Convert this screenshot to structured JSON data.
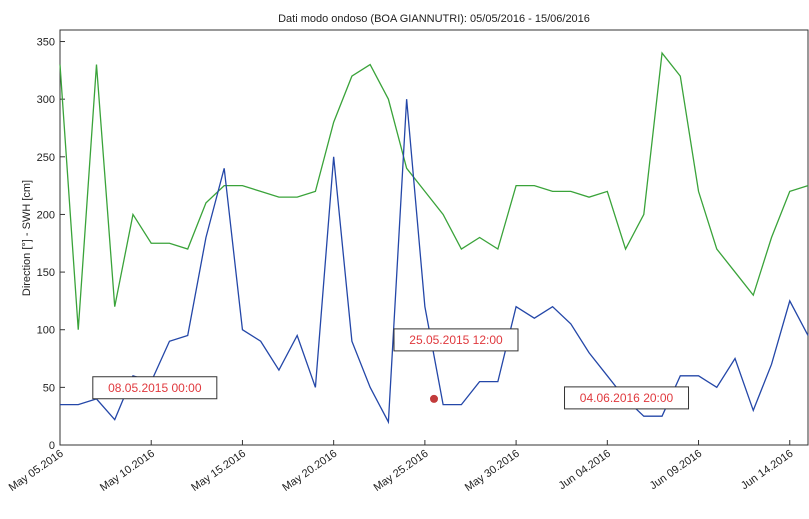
{
  "chart_data": {
    "type": "line",
    "title": "Dati modo ondoso (BOA GIANNUTRI):  05/05/2016 - 15/06/2016",
    "y_label": "Direction [°] - SWH [cm]",
    "x": [
      "2016-05-05",
      "2016-05-06",
      "2016-05-07",
      "2016-05-08",
      "2016-05-09",
      "2016-05-10",
      "2016-05-11",
      "2016-05-12",
      "2016-05-13",
      "2016-05-14",
      "2016-05-15",
      "2016-05-16",
      "2016-05-17",
      "2016-05-18",
      "2016-05-19",
      "2016-05-20",
      "2016-05-21",
      "2016-05-22",
      "2016-05-23",
      "2016-05-24",
      "2016-05-25",
      "2016-05-26",
      "2016-05-27",
      "2016-05-28",
      "2016-05-29",
      "2016-05-30",
      "2016-05-31",
      "2016-06-01",
      "2016-06-02",
      "2016-06-03",
      "2016-06-04",
      "2016-06-05",
      "2016-06-06",
      "2016-06-07",
      "2016-06-08",
      "2016-06-09",
      "2016-06-10",
      "2016-06-11",
      "2016-06-12",
      "2016-06-13",
      "2016-06-14",
      "2016-06-15"
    ],
    "series": [
      {
        "name": "Direction",
        "color": "#3aa33a",
        "values": [
          330,
          100,
          330,
          120,
          200,
          175,
          175,
          170,
          210,
          225,
          225,
          220,
          215,
          215,
          220,
          280,
          320,
          330,
          300,
          240,
          220,
          200,
          170,
          180,
          170,
          225,
          225,
          220,
          220,
          215,
          220,
          170,
          200,
          340,
          320,
          220,
          170,
          150,
          130,
          180,
          220,
          225
        ]
      },
      {
        "name": "SWH",
        "color": "#2447a8",
        "values": [
          35,
          35,
          40,
          22,
          60,
          55,
          90,
          95,
          180,
          240,
          100,
          90,
          65,
          95,
          50,
          250,
          90,
          50,
          20,
          300,
          120,
          35,
          35,
          55,
          55,
          120,
          110,
          120,
          105,
          80,
          60,
          40,
          25,
          25,
          60,
          60,
          50,
          75,
          30,
          70,
          125,
          95
        ]
      }
    ],
    "xlim": [
      "2016-05-05",
      "2016-06-15"
    ],
    "xticks": [
      {
        "value": "2016-05-05",
        "label": "May 05.2016"
      },
      {
        "value": "2016-05-10",
        "label": "May 10.2016"
      },
      {
        "value": "2016-05-15",
        "label": "May 15.2016"
      },
      {
        "value": "2016-05-20",
        "label": "May 20.2016"
      },
      {
        "value": "2016-05-25",
        "label": "May 25.2016"
      },
      {
        "value": "2016-05-30",
        "label": "May 30.2016"
      },
      {
        "value": "2016-06-04",
        "label": "Jun 04.2016"
      },
      {
        "value": "2016-06-09",
        "label": "Jun 09.2016"
      },
      {
        "value": "2016-06-14",
        "label": "Jun 14.2016"
      }
    ],
    "ylim": [
      0,
      360
    ],
    "yticks": [
      0,
      50,
      100,
      150,
      200,
      250,
      300,
      350
    ],
    "annotations": [
      {
        "text": "08.05.2015 00:00",
        "x": "2016-05-08 08:00",
        "y": 54
      },
      {
        "text": "25.05.2015 12:00",
        "x": "2016-05-25 12:00",
        "y": 40
      },
      {
        "text": "04.06.2016 20:00",
        "x": "2016-06-04 20:00",
        "y": 40
      }
    ]
  }
}
